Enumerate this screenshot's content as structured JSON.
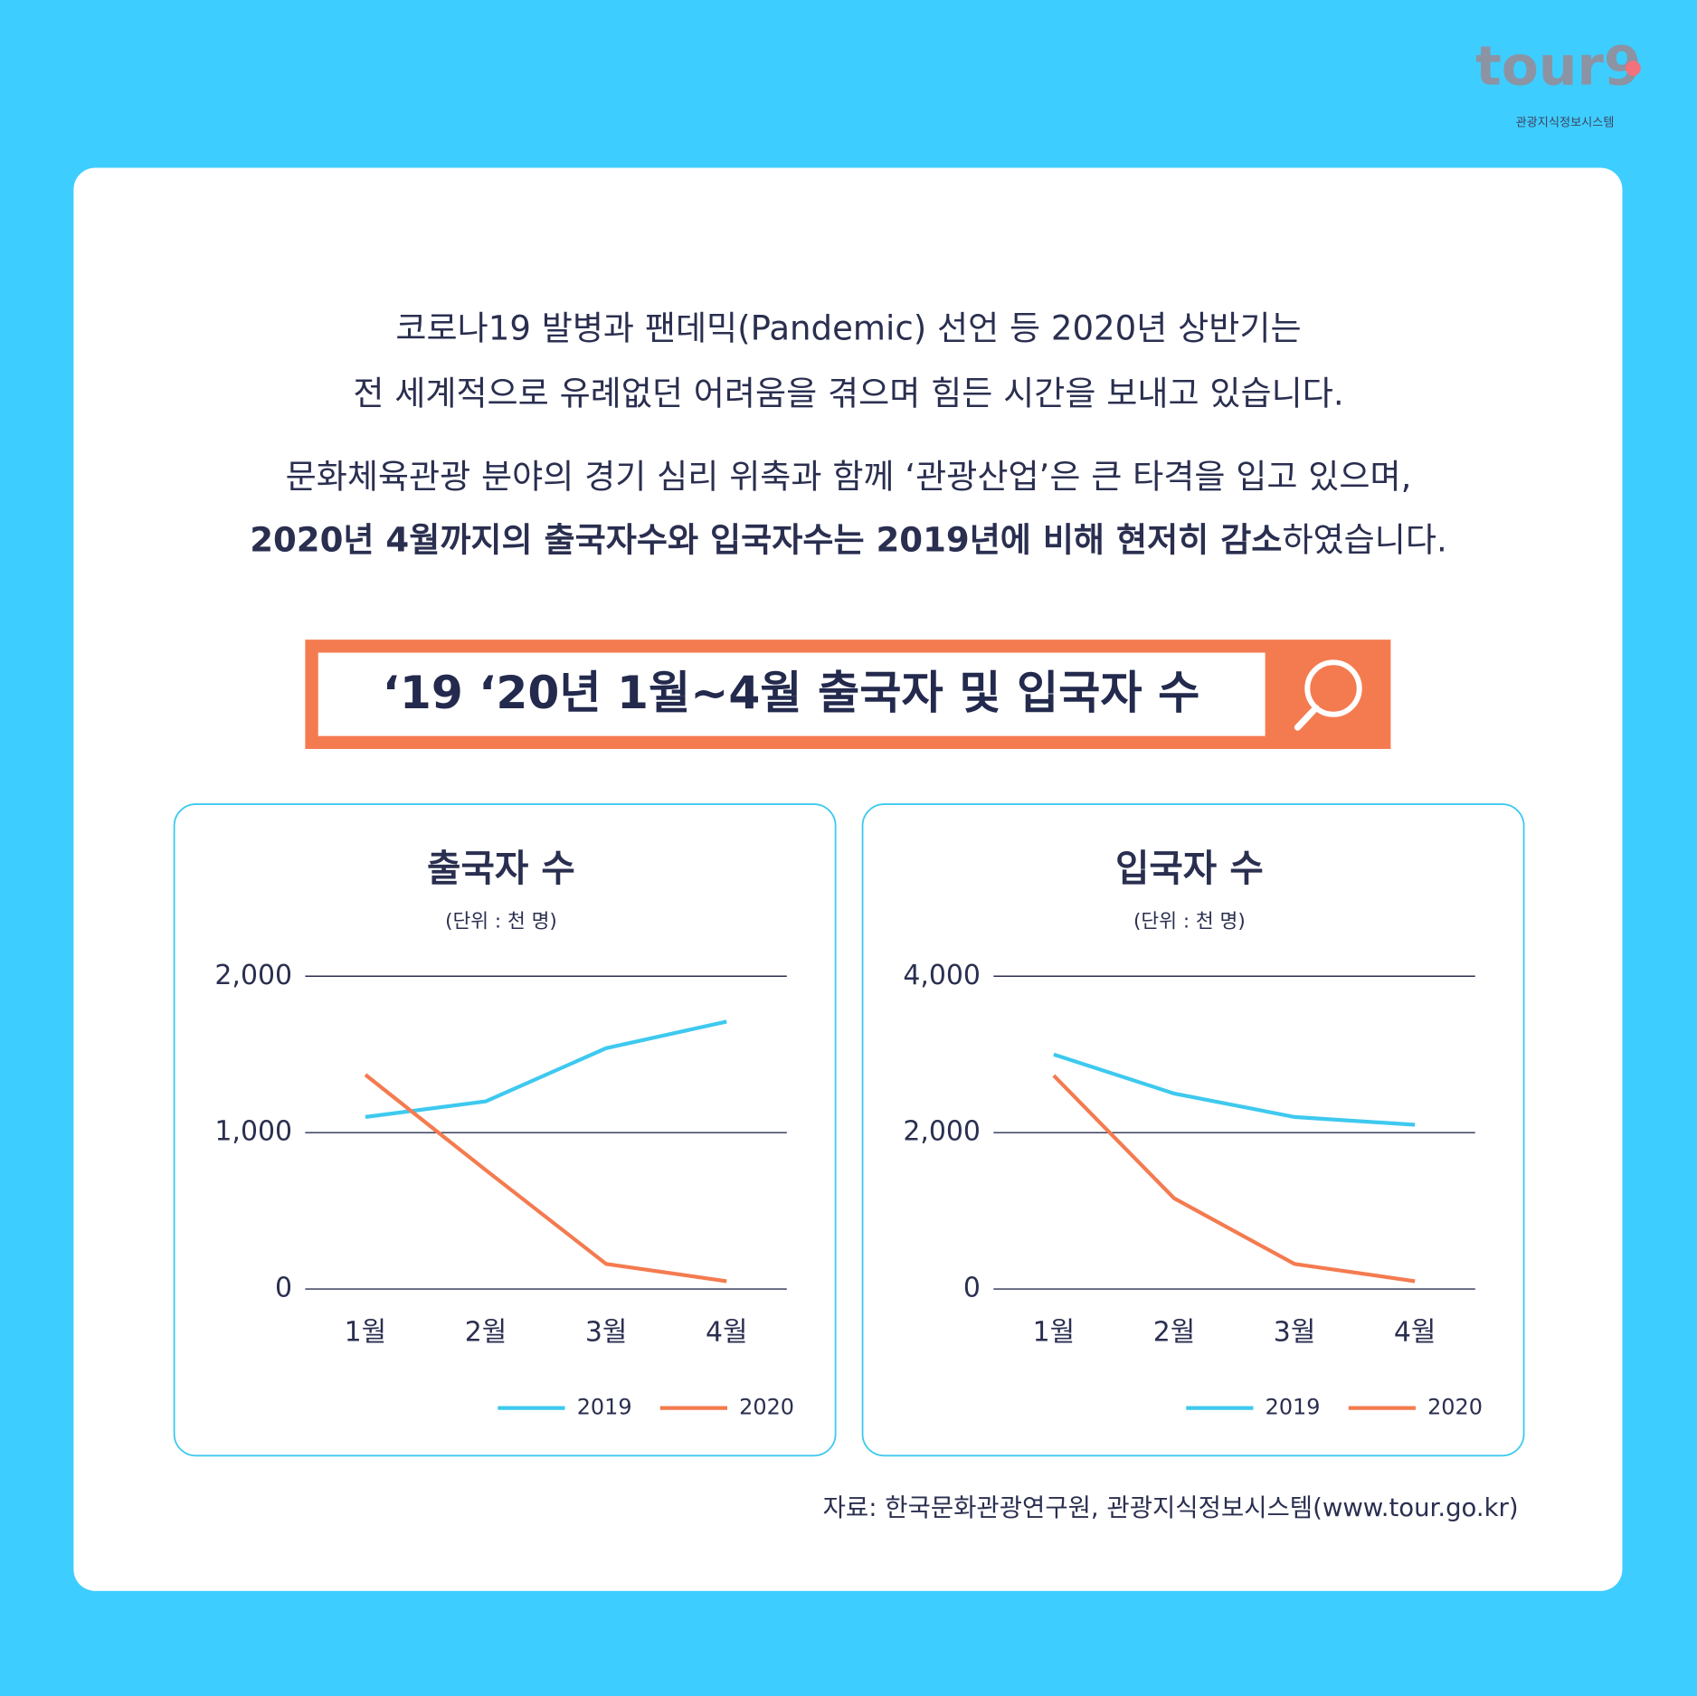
{
  "logo": {
    "name": "tour9",
    "subtitle": "관광지식정보시스템"
  },
  "intro": {
    "line1": "코로나19 발병과 팬데믹(Pandemic) 선언 등 2020년 상반기는",
    "line2": "전 세계적으로 유례없던 어려움을 겪으며 힘든 시간을 보내고 있습니다.",
    "line3": "문화체육관광 분야의 경기 심리 위축과 함께 ‘관광산업’은 큰 타격을 입고 있으며,",
    "line4_bold": "2020년 4월까지의 출국자수와 입국자수는 2019년에 비해 현저히 감소",
    "line4_rest": "하였습니다."
  },
  "banner_title": "‘19 ‘20년 1월~4월 출국자 및 입국자 수",
  "source": "자료: 한국문화관광연구원, 관광지식정보시스템(www.tour.go.kr)",
  "chart_data": [
    {
      "type": "line",
      "title": "출국자 수",
      "subtitle": "(단위 : 천 명)",
      "categories": [
        "1월",
        "2월",
        "3월",
        "4월"
      ],
      "series": [
        {
          "name": "2019",
          "color": "#3ec9ef",
          "values": [
            1100,
            1200,
            1540,
            1710
          ]
        },
        {
          "name": "2020",
          "color": "#f47b50",
          "values": [
            1370,
            760,
            160,
            50
          ]
        }
      ],
      "ylim": [
        0,
        2000
      ],
      "yticks": [
        0,
        {
          "value": 1000,
          "label": "1,000"
        },
        {
          "value": 2000,
          "label": "2,000"
        }
      ],
      "grid": true,
      "legend": "bottom-right"
    },
    {
      "type": "line",
      "title": "입국자 수",
      "subtitle": "(단위 : 천 명)",
      "categories": [
        "1월",
        "2월",
        "3월",
        "4월"
      ],
      "series": [
        {
          "name": "2019",
          "color": "#3ec9ef",
          "values": [
            3000,
            2500,
            2200,
            2100
          ]
        },
        {
          "name": "2020",
          "color": "#f47b50",
          "values": [
            2730,
            1160,
            320,
            100
          ]
        }
      ],
      "ylim": [
        0,
        4000
      ],
      "yticks": [
        0,
        {
          "value": 2000,
          "label": "2,000"
        },
        {
          "value": 4000,
          "label": "4,000"
        }
      ],
      "grid": true,
      "legend": "bottom-right"
    }
  ]
}
